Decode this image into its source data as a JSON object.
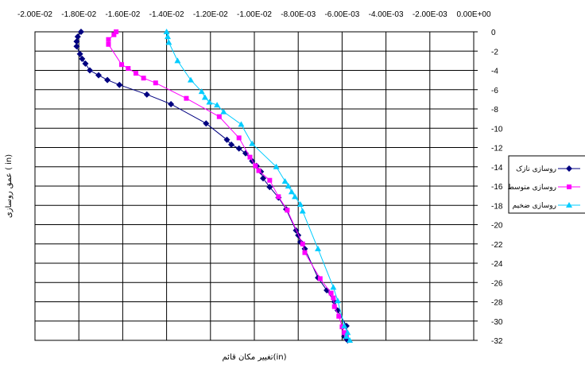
{
  "chart_data": {
    "type": "scatter",
    "xlabel": "تغییر مکان قائم(in)",
    "ylabel": "عمق روسازی ( in)",
    "xlim": [
      -0.02,
      0
    ],
    "ylim": [
      -32,
      0
    ],
    "x_axis_position": "top",
    "y_axis_position": "right",
    "grid": true,
    "legend_position": "right",
    "x_tick_labels": [
      "-2.00E-02",
      "-1.80E-02",
      "-1.60E-02",
      "-1.40E-02",
      "-1.20E-02",
      "-1.00E-02",
      "-8.00E-03",
      "-6.00E-03",
      "-4.00E-03",
      "-2.00E-03",
      "0.00E+00"
    ],
    "x_ticks": [
      -0.02,
      -0.018,
      -0.016,
      -0.014,
      -0.012,
      -0.01,
      -0.008,
      -0.006,
      -0.004,
      -0.002,
      0
    ],
    "y_tick_labels": [
      "0",
      "-2",
      "-4",
      "-6",
      "-8",
      "-10",
      "-12",
      "-14",
      "-16",
      "-18",
      "-20",
      "-22",
      "-24",
      "-26",
      "-28",
      "-30",
      "-32"
    ],
    "y_ticks": [
      0,
      -2,
      -4,
      -6,
      -8,
      -10,
      -12,
      -14,
      -16,
      -18,
      -20,
      -22,
      -24,
      -26,
      -28,
      -30,
      -32
    ],
    "series": [
      {
        "name": "روسازی نازک",
        "color": "#000080",
        "marker": "diamond",
        "points": [
          [
            -0.0179,
            0
          ],
          [
            -0.01805,
            -0.5
          ],
          [
            -0.0181,
            -1.0
          ],
          [
            -0.0181,
            -1.5
          ],
          [
            -0.01795,
            -2.3
          ],
          [
            -0.01785,
            -2.8
          ],
          [
            -0.0177,
            -3.3
          ],
          [
            -0.0175,
            -4.0
          ],
          [
            -0.0171,
            -4.5
          ],
          [
            -0.0167,
            -5.0
          ],
          [
            -0.01615,
            -5.5
          ],
          [
            -0.0149,
            -6.5
          ],
          [
            -0.0138,
            -7.5
          ],
          [
            -0.0122,
            -9.5
          ],
          [
            -0.01125,
            -11.2
          ],
          [
            -0.01105,
            -11.7
          ],
          [
            -0.0107,
            -12.1
          ],
          [
            -0.0104,
            -12.6
          ],
          [
            -0.0101,
            -13.4
          ],
          [
            -0.0099,
            -13.9
          ],
          [
            -0.0097,
            -14.5
          ],
          [
            -0.0096,
            -15.2
          ],
          [
            -0.0093,
            -16.1
          ],
          [
            -0.0089,
            -17.2
          ],
          [
            -0.00855,
            -18.4
          ],
          [
            -0.0081,
            -20.6
          ],
          [
            -0.008,
            -21.1
          ],
          [
            -0.0079,
            -21.8
          ],
          [
            -0.0077,
            -22.5
          ],
          [
            -0.0071,
            -25.5
          ],
          [
            -0.0067,
            -26.8
          ],
          [
            -0.00635,
            -28.0
          ],
          [
            -0.0062,
            -28.9
          ],
          [
            -0.0058,
            -30.5
          ],
          [
            -0.0058,
            -31.3
          ],
          [
            -0.0059,
            -31.6
          ],
          [
            -0.0058,
            -31.8
          ],
          [
            -0.00575,
            -32.0
          ]
        ]
      },
      {
        "name": "روسازی متوسط",
        "color": "#FF00FF",
        "marker": "square",
        "points": [
          [
            -0.0163,
            0
          ],
          [
            -0.0164,
            -0.3
          ],
          [
            -0.01665,
            -0.8
          ],
          [
            -0.01665,
            -1.3
          ],
          [
            -0.01605,
            -3.4
          ],
          [
            -0.01575,
            -3.8
          ],
          [
            -0.0154,
            -4.3
          ],
          [
            -0.01505,
            -4.8
          ],
          [
            -0.0145,
            -5.3
          ],
          [
            -0.0131,
            -6.9
          ],
          [
            -0.0116,
            -8.8
          ],
          [
            -0.0107,
            -11.0
          ],
          [
            -0.0102,
            -13.0
          ],
          [
            -0.00995,
            -13.9
          ],
          [
            -0.0098,
            -14.4
          ],
          [
            -0.0093,
            -15.4
          ],
          [
            -0.0089,
            -17.1
          ],
          [
            -0.0085,
            -18.5
          ],
          [
            -0.0078,
            -22.0
          ],
          [
            -0.0077,
            -22.9
          ],
          [
            -0.007,
            -25.6
          ],
          [
            -0.0065,
            -27.1
          ],
          [
            -0.0064,
            -27.6
          ],
          [
            -0.00635,
            -28.5
          ],
          [
            -0.00615,
            -29.5
          ],
          [
            -0.006,
            -30.6
          ],
          [
            -0.0059,
            -31.2
          ],
          [
            -0.0058,
            -31.6
          ]
        ]
      },
      {
        "name": "روسازی ضخیم",
        "color": "#00CCFF",
        "marker": "triangle",
        "points": [
          [
            -0.014,
            0
          ],
          [
            -0.01395,
            -0.5
          ],
          [
            -0.0139,
            -1.1
          ],
          [
            -0.0135,
            -3.0
          ],
          [
            -0.0129,
            -5.0
          ],
          [
            -0.0124,
            -6.2
          ],
          [
            -0.01225,
            -6.8
          ],
          [
            -0.01205,
            -7.3
          ],
          [
            -0.0117,
            -7.6
          ],
          [
            -0.0114,
            -8.3
          ],
          [
            -0.0106,
            -9.6
          ],
          [
            -0.0101,
            -11.6
          ],
          [
            -0.009,
            -14.0
          ],
          [
            -0.0086,
            -15.5
          ],
          [
            -0.00845,
            -16.0
          ],
          [
            -0.0083,
            -16.6
          ],
          [
            -0.00815,
            -17.1
          ],
          [
            -0.0079,
            -17.9
          ],
          [
            -0.0078,
            -18.6
          ],
          [
            -0.0071,
            -22.5
          ],
          [
            -0.0064,
            -26.5
          ],
          [
            -0.0062,
            -27.9
          ],
          [
            -0.0059,
            -30.5
          ],
          [
            -0.00575,
            -31.2
          ],
          [
            -0.0058,
            -31.6
          ],
          [
            -0.00565,
            -32.0
          ]
        ]
      }
    ]
  }
}
